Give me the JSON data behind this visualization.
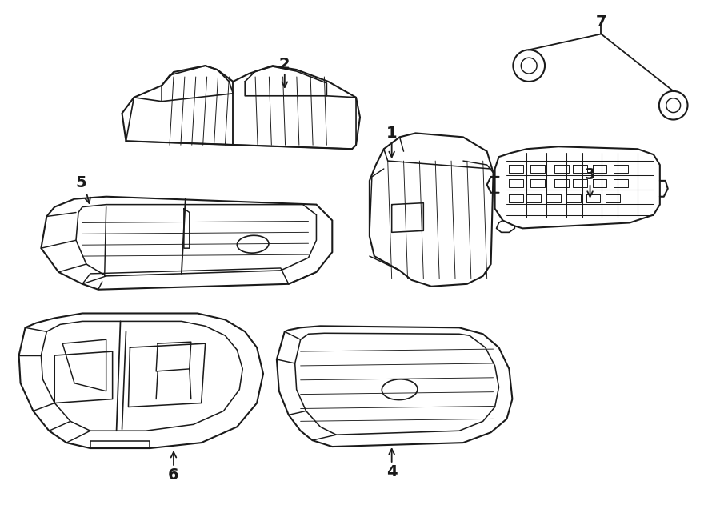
{
  "background_color": "#ffffff",
  "line_color": "#1a1a1a",
  "line_width": 1.5,
  "fig_width": 9.0,
  "fig_height": 6.61,
  "dpi": 100
}
